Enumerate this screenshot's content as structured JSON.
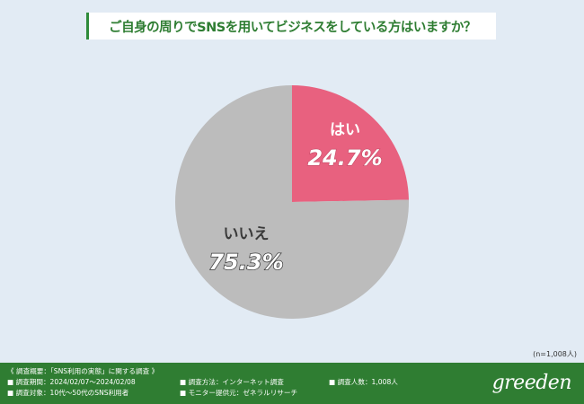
{
  "title": "ご自身の周りでSNSを用いてビジネスをしている方はいますか？",
  "sample_size": "(n=1,008人)",
  "chart_data": {
    "type": "pie",
    "slices": [
      {
        "label": "はい",
        "value": 24.7,
        "value_label": "24.7%",
        "color": "#e8617f"
      },
      {
        "label": "いいえ",
        "value": 75.3,
        "value_label": "75.3%",
        "color": "#bcbcbc"
      }
    ],
    "start_angle": "12 o'clock",
    "direction": "clockwise"
  },
  "footer": {
    "heading": "《 調査概要：「SNS利用の実態」に関する調査 》",
    "period": "■ 調査期間：2024/02/07～2024/02/08",
    "target": "■ 調査対象：10代～50代のSNS利用者",
    "method": "■ 調査方法：インターネット調査",
    "monitor": "■ モニター提供元：ゼネラルリサーチ",
    "count": "■ 調査人数：1,008人",
    "logo": "greeden"
  },
  "colors": {
    "background": "#e2ebf4",
    "footer": "#2f7d32",
    "title_text": "#2e7d32"
  }
}
